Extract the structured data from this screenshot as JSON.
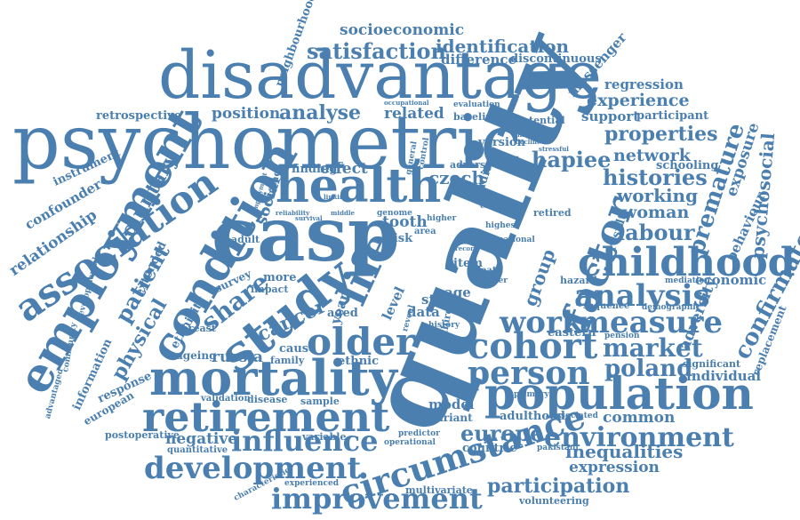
{
  "cloud": {
    "color": "#4a7fb0",
    "words": [
      "psychometric",
      "disadvantage",
      "quality",
      "casp",
      "health",
      "employment",
      "association",
      "condition",
      "study",
      "mortality",
      "retirement",
      "population",
      "childhood",
      "development",
      "improvement",
      "circumstance",
      "older",
      "factor",
      "cohort",
      "person",
      "analysis",
      "measure",
      "work",
      "life",
      "influence",
      "environment",
      "europe",
      "market",
      "poland",
      "premature",
      "confirmatory",
      "psychosocial",
      "satisfaction",
      "identification",
      "difference",
      "discontinuous",
      "socioeconomic",
      "neighbourhood",
      "messenger",
      "regression",
      "experience",
      "support",
      "participant",
      "properties",
      "network",
      "exposure",
      "hapiee",
      "histories",
      "working",
      "woman",
      "labour",
      "schooling",
      "behaviour",
      "economic",
      "adversity",
      "individual",
      "replacement",
      "significant",
      "mediation",
      "sequence",
      "demographic",
      "pension",
      "eastern",
      "common",
      "adulthood",
      "inequalities",
      "expression",
      "participation",
      "volunteering",
      "multivariate",
      "variant",
      "model",
      "data",
      "aged",
      "cancer",
      "russia",
      "share",
      "patient",
      "physical",
      "voluntary",
      "relationship",
      "confounder",
      "instrument",
      "retrospective",
      "position",
      "analyse",
      "related",
      "finding",
      "effect",
      "social",
      "czech",
      "tooth",
      "risk",
      "area",
      "item",
      "age",
      "death",
      "negative",
      "postoperative",
      "quantitative",
      "sample",
      "disease",
      "validation",
      "ageing",
      "ethnicity",
      "breast",
      "response",
      "european",
      "information",
      "advantaged",
      "community",
      "developmental",
      "extended",
      "family",
      "ethnic",
      "cause",
      "variable",
      "countrie",
      "primary",
      "result",
      "group",
      "survey",
      "adult",
      "impact",
      "more",
      "baseline",
      "evaluation",
      "version",
      "potential",
      "adverse",
      "level",
      "year",
      "cluster",
      "shorter",
      "retired",
      "highest",
      "national",
      "reliability",
      "higher",
      "genome",
      "middle",
      "linking",
      "survival",
      "important",
      "occupational",
      "stressful",
      "decline",
      "control",
      "general",
      "predictor",
      "operational",
      "associated",
      "pakistani",
      "characteristic",
      "experienced",
      "reveal",
      "history",
      "third",
      "str",
      "contact",
      "employment",
      "record",
      "hazard",
      "studies"
    ]
  }
}
